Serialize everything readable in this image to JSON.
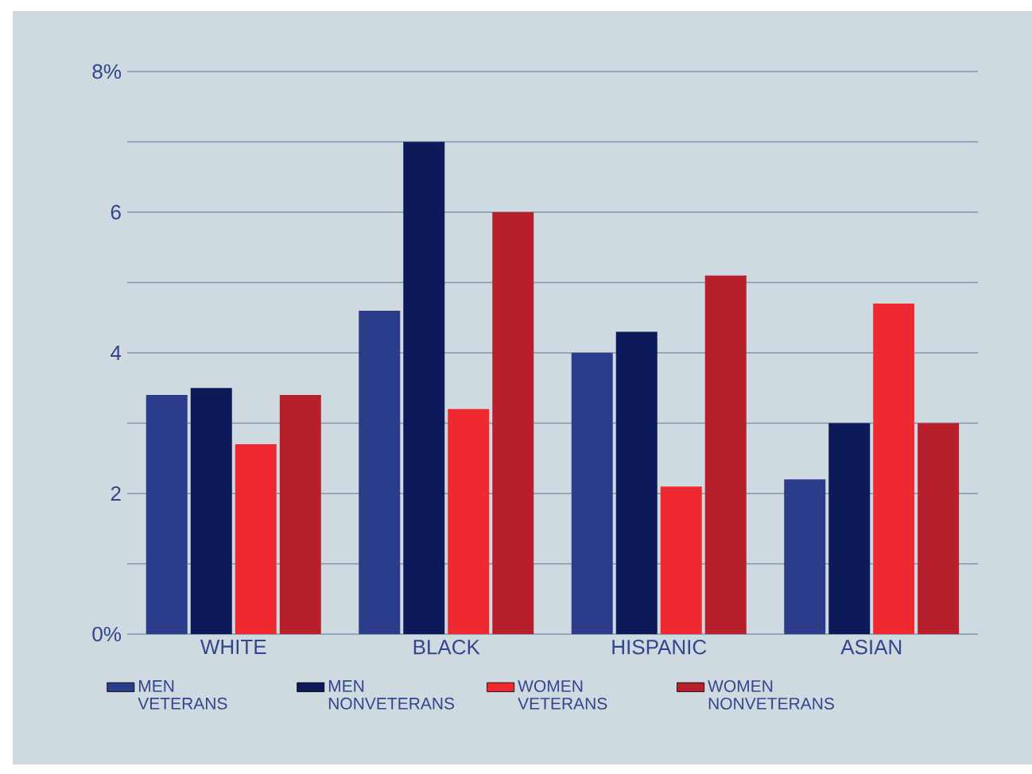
{
  "chart_data": {
    "type": "bar",
    "categories": [
      "WHITE",
      "BLACK",
      "HISPANIC",
      "ASIAN"
    ],
    "series": [
      {
        "name": "MEN VETERANS",
        "color": "#2b3d8a",
        "values": [
          3.4,
          4.6,
          4.0,
          2.2
        ]
      },
      {
        "name": "MEN NONVETERANS",
        "color": "#0c1a5a",
        "values": [
          3.5,
          7.0,
          4.3,
          3.0
        ]
      },
      {
        "name": "WOMEN VETERANS",
        "color": "#ee2a30",
        "values": [
          2.7,
          3.2,
          2.1,
          4.7
        ]
      },
      {
        "name": "WOMEN NONVETERANS",
        "color": "#b71f2a",
        "values": [
          3.4,
          6.0,
          5.1,
          3.0
        ]
      }
    ],
    "ylim": [
      0,
      8
    ],
    "yticks": [
      {
        "value": 0,
        "label": "0%"
      },
      {
        "value": 1,
        "label": null
      },
      2,
      {
        "value": 3,
        "label": null
      },
      4,
      {
        "value": 5,
        "label": null
      },
      6,
      {
        "value": 7,
        "label": null
      },
      {
        "value": 8,
        "label": "8%"
      }
    ],
    "grid": "y",
    "legend": "bottom"
  }
}
